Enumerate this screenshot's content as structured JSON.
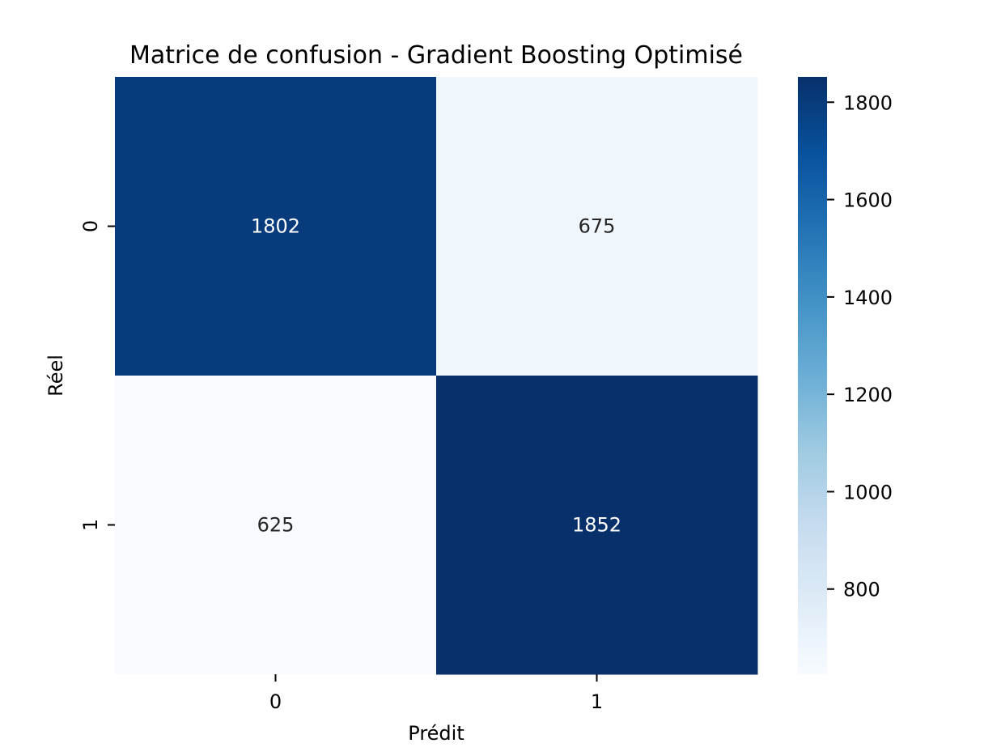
{
  "chart_data": {
    "type": "heatmap",
    "title": "Matrice de confusion - Gradient Boosting Optimisé",
    "xlabel": "Prédit",
    "ylabel": "Réel",
    "x_categories": [
      "0",
      "1"
    ],
    "y_categories": [
      "0",
      "1"
    ],
    "values": [
      [
        1802,
        675
      ],
      [
        625,
        1852
      ]
    ],
    "colormap": "Blues",
    "colors": {
      "low": "#f7fbff",
      "high": "#08306b"
    },
    "colorbar": {
      "range": [
        625,
        1852
      ],
      "ticks": [
        800,
        1000,
        1200,
        1400,
        1600,
        1800
      ],
      "position": "right"
    },
    "grid": false,
    "legend": "none"
  }
}
